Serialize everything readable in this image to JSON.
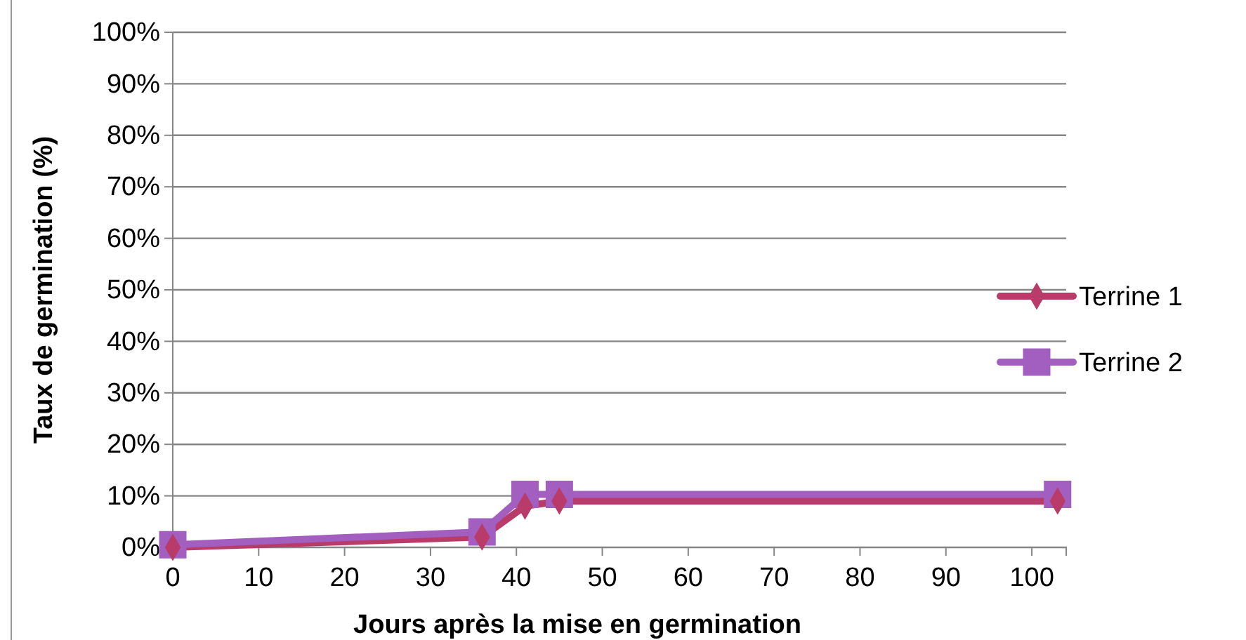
{
  "chart_data": {
    "type": "line",
    "xlabel": "Jours après la mise en germination",
    "ylabel": "Taux de germination (%)",
    "x": [
      0,
      36,
      41,
      45,
      103
    ],
    "series": [
      {
        "name": "Terrine 1",
        "color": "#b83b6a",
        "marker": "diamond",
        "values": [
          0,
          2,
          8,
          9,
          9
        ]
      },
      {
        "name": "Terrine 2",
        "color": "#a25fbf",
        "marker": "square",
        "values": [
          0.5,
          3,
          10.3,
          10.3,
          10.3
        ]
      }
    ],
    "xlim": [
      0,
      104
    ],
    "xticks": [
      0,
      10,
      20,
      30,
      40,
      50,
      60,
      70,
      80,
      90,
      100
    ],
    "ylim": [
      0,
      100
    ],
    "yticks": [
      {
        "value": 0,
        "label": "0%"
      },
      {
        "value": 10,
        "label": "10%"
      },
      {
        "value": 20,
        "label": "20%"
      },
      {
        "value": 30,
        "label": "30%"
      },
      {
        "value": 40,
        "label": "40%"
      },
      {
        "value": 50,
        "label": "50%"
      },
      {
        "value": 60,
        "label": "60%"
      },
      {
        "value": 70,
        "label": "70%"
      },
      {
        "value": 80,
        "label": "80%"
      },
      {
        "value": 90,
        "label": "90%"
      },
      {
        "value": 100,
        "label": "100%"
      }
    ],
    "grid": "y",
    "legend": "right"
  }
}
